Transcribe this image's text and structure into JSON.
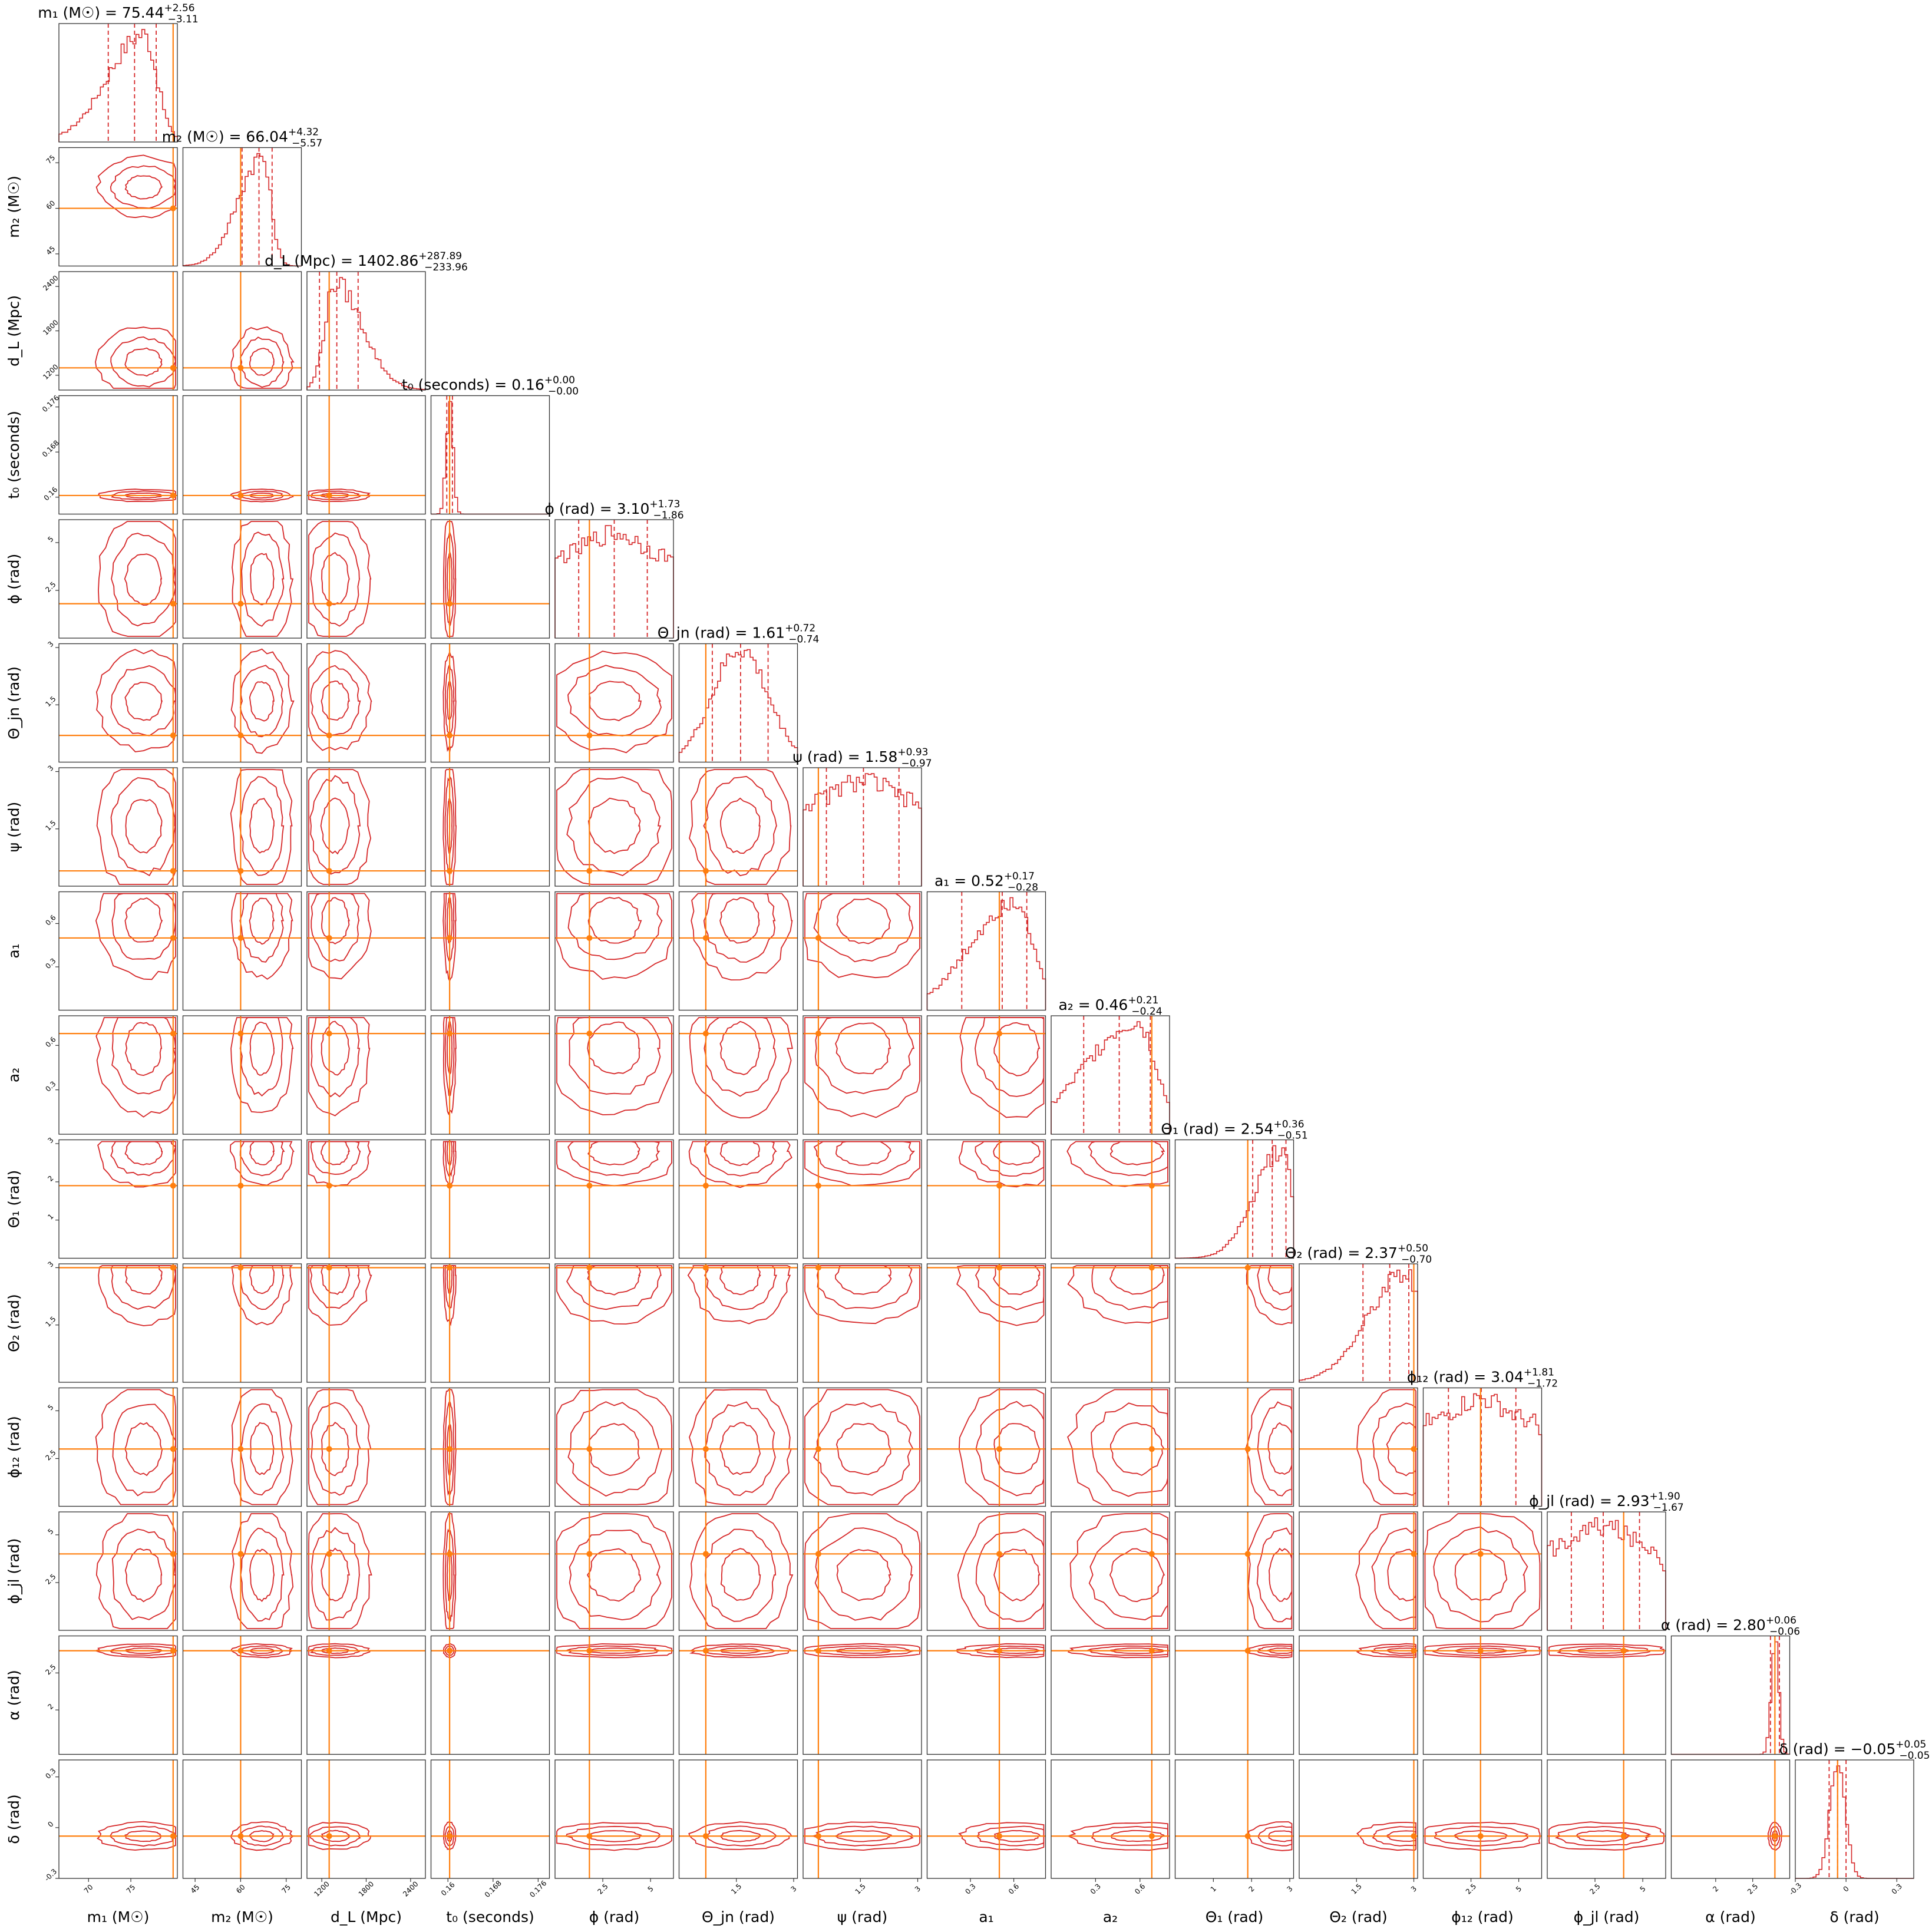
{
  "chart_data": {
    "type": "corner",
    "colors": {
      "posterior": "#d62728",
      "truth": "#ff7f0e",
      "frame": "#333333"
    },
    "parameters": [
      {
        "id": "m1",
        "xlabel": "m₁ (M☉)",
        "title_lhs": "m₁ (M☉) = ",
        "median": "75.44",
        "plus": "+2.56",
        "minus": "−3.11",
        "range": [
          66.5,
          80.5
        ],
        "ticks": [
          70,
          75
        ],
        "truth": 80,
        "q": [
          72.33,
          75.44,
          78.0
        ],
        "hist_center": 76.5,
        "hist_sigma": 3.0,
        "hist_shape": "skew-right"
      },
      {
        "id": "m2",
        "xlabel": "m₂ (M☉)",
        "title_lhs": "m₂ (M☉) = ",
        "median": "66.04",
        "plus": "+4.32",
        "minus": "−5.57",
        "range": [
          41,
          80
        ],
        "ticks": [
          45,
          60,
          75
        ],
        "truth": 60,
        "q": [
          60.47,
          66.04,
          70.36
        ],
        "hist_center": 67,
        "hist_sigma": 5.5,
        "hist_shape": "skew-right"
      },
      {
        "id": "dL",
        "xlabel": "d_L (Mpc)",
        "title_lhs": "d_L (Mpc) = ",
        "median": "1402.86",
        "plus": "+287.89",
        "minus": "−233.96",
        "range": [
          1000,
          2600
        ],
        "ticks": [
          1200,
          1800,
          2400
        ],
        "truth": 1300,
        "q": [
          1168.9,
          1402.86,
          1690.75
        ],
        "hist_center": 1380,
        "hist_sigma": 260,
        "hist_shape": "skew-left"
      },
      {
        "id": "t0",
        "xlabel": "t₀ (seconds)",
        "title_lhs": "t₀ (seconds) = ",
        "median": "0.16",
        "plus": "+0.00",
        "minus": "−0.00",
        "range": [
          0.157,
          0.178
        ],
        "ticks": [
          0.16,
          0.168,
          0.176
        ],
        "truth": 0.1603,
        "q": [
          0.1598,
          0.1603,
          0.1608
        ],
        "hist_center": 0.1603,
        "hist_sigma": 0.0006,
        "hist_shape": "normal"
      },
      {
        "id": "phi",
        "xlabel": "ϕ (rad)",
        "title_lhs": "ϕ (rad) = ",
        "median": "3.10",
        "plus": "+1.73",
        "minus": "−1.86",
        "range": [
          0,
          6.2
        ],
        "ticks": [
          2.5,
          5.0
        ],
        "truth": 1.8,
        "q": [
          1.24,
          3.1,
          4.83
        ],
        "hist_center": 3.1,
        "hist_sigma": 1.9,
        "hist_shape": "flat"
      },
      {
        "id": "theta_jn",
        "xlabel": "Θ_jn (rad)",
        "title_lhs": "Θ_jn (rad) = ",
        "median": "1.61",
        "plus": "+0.72",
        "minus": "−0.74",
        "range": [
          0,
          3.1
        ],
        "ticks": [
          1.5,
          3.0
        ],
        "truth": 0.7,
        "q": [
          0.87,
          1.61,
          2.33
        ],
        "hist_center": 1.6,
        "hist_sigma": 0.72,
        "hist_shape": "normal"
      },
      {
        "id": "psi",
        "xlabel": "ψ (rad)",
        "title_lhs": "ψ (rad) = ",
        "median": "1.58",
        "plus": "+0.93",
        "minus": "−0.97",
        "range": [
          0,
          3.1
        ],
        "ticks": [
          1.5,
          3.0
        ],
        "truth": 0.4,
        "q": [
          0.61,
          1.58,
          2.51
        ],
        "hist_center": 1.58,
        "hist_sigma": 1.0,
        "hist_shape": "flat"
      },
      {
        "id": "a1",
        "xlabel": "a₁",
        "title_lhs": "a₁ = ",
        "median": "0.52",
        "plus": "+0.17",
        "minus": "−0.28",
        "range": [
          0,
          0.82
        ],
        "ticks": [
          0.3,
          0.6
        ],
        "truth": 0.5,
        "q": [
          0.24,
          0.52,
          0.69
        ],
        "hist_center": 0.62,
        "hist_sigma": 0.22,
        "hist_shape": "skew-right"
      },
      {
        "id": "a2",
        "xlabel": "a₂",
        "title_lhs": "a₂ = ",
        "median": "0.46",
        "plus": "+0.21",
        "minus": "−0.24",
        "range": [
          0,
          0.8
        ],
        "ticks": [
          0.3,
          0.6
        ],
        "truth": 0.68,
        "q": [
          0.22,
          0.46,
          0.67
        ],
        "hist_center": 0.58,
        "hist_sigma": 0.25,
        "hist_shape": "skew-right"
      },
      {
        "id": "theta1",
        "xlabel": "Θ₁ (rad)",
        "title_lhs": "Θ₁ (rad) = ",
        "median": "2.54",
        "plus": "+0.36",
        "minus": "−0.51",
        "range": [
          0,
          3.1
        ],
        "ticks": [
          1,
          2,
          3
        ],
        "truth": 1.9,
        "q": [
          2.03,
          2.54,
          2.9
        ],
        "hist_center": 2.8,
        "hist_sigma": 0.5,
        "hist_shape": "skew-right"
      },
      {
        "id": "theta2",
        "xlabel": "Θ₂ (rad)",
        "title_lhs": "Θ₂ (rad) = ",
        "median": "2.37",
        "plus": "+0.50",
        "minus": "−0.70",
        "range": [
          0,
          3.1
        ],
        "ticks": [
          1.5,
          3.0
        ],
        "truth": 3.0,
        "q": [
          1.67,
          2.37,
          2.87
        ],
        "hist_center": 2.8,
        "hist_sigma": 0.7,
        "hist_shape": "skew-right"
      },
      {
        "id": "phi12",
        "xlabel": "ϕ₁₂ (rad)",
        "title_lhs": "ϕ₁₂ (rad) = ",
        "median": "3.04",
        "plus": "+1.81",
        "minus": "−1.72",
        "range": [
          0,
          6.2
        ],
        "ticks": [
          2.5,
          5.0
        ],
        "truth": 3.0,
        "q": [
          1.32,
          3.04,
          4.85
        ],
        "hist_center": 3.0,
        "hist_sigma": 1.9,
        "hist_shape": "flat"
      },
      {
        "id": "phi_jl",
        "xlabel": "ϕ_jl (rad)",
        "title_lhs": "ϕ_jl (rad) = ",
        "median": "2.93",
        "plus": "+1.90",
        "minus": "−1.67",
        "range": [
          0,
          6.2
        ],
        "ticks": [
          2.5,
          5.0
        ],
        "truth": 4.0,
        "q": [
          1.26,
          2.93,
          4.83
        ],
        "hist_center": 2.9,
        "hist_sigma": 1.9,
        "hist_shape": "flat"
      },
      {
        "id": "alpha",
        "xlabel": "α (rad)",
        "title_lhs": "α (rad) = ",
        "median": "2.80",
        "plus": "+0.06",
        "minus": "−0.06",
        "range": [
          1.4,
          3.0
        ],
        "ticks": [
          2.0,
          2.5
        ],
        "truth": 2.8,
        "q": [
          2.74,
          2.8,
          2.86
        ],
        "hist_center": 2.8,
        "hist_sigma": 0.05,
        "hist_shape": "normal"
      },
      {
        "id": "delta",
        "xlabel": "δ (rad)",
        "title_lhs": "δ (rad) = ",
        "median": "−0.05",
        "plus": "+0.05",
        "minus": "−0.05",
        "range": [
          -0.3,
          0.4
        ],
        "ticks": [
          -0.3,
          0.0,
          0.3
        ],
        "truth": -0.05,
        "q": [
          -0.1,
          -0.05,
          0.0
        ],
        "hist_center": -0.05,
        "hist_sigma": 0.045,
        "hist_shape": "normal"
      }
    ]
  }
}
